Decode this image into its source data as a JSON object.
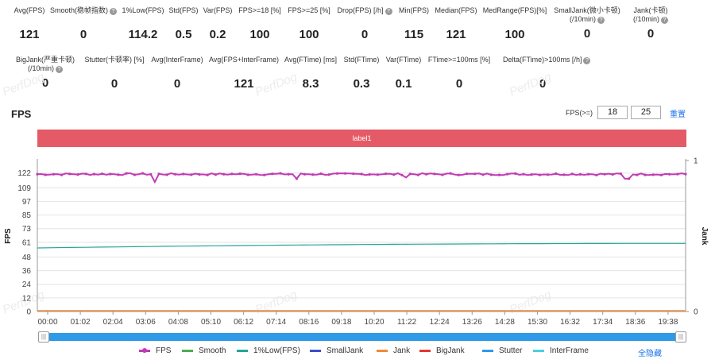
{
  "stats_row1": [
    {
      "label": "Avg(FPS)",
      "value": "121",
      "help": false
    },
    {
      "label": "Smooth(稳帧指数)",
      "value": "0",
      "help": true
    },
    {
      "label": "1%Low(FPS)",
      "value": "114.2",
      "help": false
    },
    {
      "label": "Std(FPS)",
      "value": "0.5",
      "help": false
    },
    {
      "label": "Var(FPS)",
      "value": "0.2",
      "help": false
    },
    {
      "label": "FPS>=18 [%]",
      "value": "100",
      "help": false
    },
    {
      "label": "FPS>=25 [%]",
      "value": "100",
      "help": false
    },
    {
      "label": "Drop(FPS) [/h]",
      "value": "0",
      "help": true
    },
    {
      "label": "Min(FPS)",
      "value": "115",
      "help": false
    },
    {
      "label": "Median(FPS)",
      "value": "121",
      "help": false
    },
    {
      "label": "MedRange(FPS)[%]",
      "value": "100",
      "help": false
    },
    {
      "label": "SmallJank(微小卡顿)\n(/10min)",
      "value": "0",
      "help": true
    },
    {
      "label": "Jank(卡顿)\n(/10min)",
      "value": "0",
      "help": true
    }
  ],
  "stats_row2": [
    {
      "label": "BigJank(严重卡顿)\n(/10min)",
      "value": "0",
      "help": true
    },
    {
      "label": "Stutter(卡顿率) [%]",
      "value": "0",
      "help": false
    },
    {
      "label": "Avg(InterFrame)",
      "value": "0",
      "help": false
    },
    {
      "label": "Avg(FPS+InterFrame)",
      "value": "121",
      "help": false
    },
    {
      "label": "Avg(FTime) [ms]",
      "value": "8.3",
      "help": false
    },
    {
      "label": "Std(FTime)",
      "value": "0.3",
      "help": false
    },
    {
      "label": "Var(FTime)",
      "value": "0.1",
      "help": false
    },
    {
      "label": "FTime>=100ms [%]",
      "value": "0",
      "help": false
    },
    {
      "label": "Delta(FTime)>100ms [/h]",
      "value": "0",
      "help": true
    }
  ],
  "section_title": "FPS",
  "fps_filter": {
    "label": "FPS(>=)",
    "value1": "18",
    "value2": "25"
  },
  "reset_label": "重置",
  "label_bar": "label1",
  "watermark": "PerfDog",
  "chart_data": {
    "type": "line",
    "ylabel": "FPS",
    "y2label": "Jank",
    "yticks": [
      0,
      12,
      24,
      36,
      48,
      61,
      73,
      85,
      97,
      109,
      122
    ],
    "ylim": [
      0,
      133
    ],
    "y2ticks": [
      0,
      1
    ],
    "xticks": [
      "00:00",
      "01:02",
      "02:04",
      "03:06",
      "04:08",
      "05:10",
      "06:12",
      "07:14",
      "08:16",
      "09:18",
      "10:20",
      "11:22",
      "12:24",
      "13:26",
      "14:28",
      "15:30",
      "16:32",
      "17:34",
      "18:36",
      "19:38"
    ],
    "series": [
      {
        "name": "FPS",
        "color": "#c23bb4",
        "baseline": 121,
        "dips": [
          [
            0.18,
            114
          ],
          [
            0.4,
            117
          ],
          [
            0.57,
            118
          ],
          [
            0.91,
            117
          ]
        ]
      },
      {
        "name": "Smooth",
        "color": "#4caf50",
        "baseline": 0
      },
      {
        "name": "1%Low(FPS)",
        "color": "#26a69a",
        "start": 56,
        "end": 60
      },
      {
        "name": "SmallJank",
        "color": "#3b4fc9",
        "baseline": 0
      },
      {
        "name": "Jank",
        "color": "#f08a3c",
        "baseline": 0
      },
      {
        "name": "BigJank",
        "color": "#e53935",
        "baseline": 0
      },
      {
        "name": "Stutter",
        "color": "#2f9ae8",
        "baseline": 0
      },
      {
        "name": "InterFrame",
        "color": "#4dd0e1",
        "baseline": 0
      }
    ]
  },
  "hide_all_label": "全隐藏"
}
